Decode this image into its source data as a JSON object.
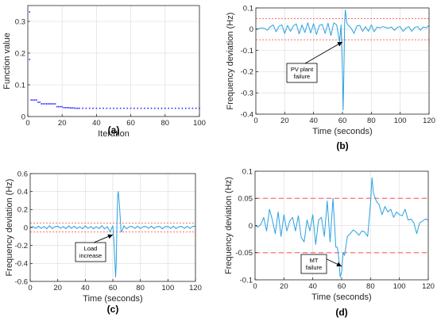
{
  "chart_data": [
    {
      "type": "scatter",
      "panel_label": "(a)",
      "xlabel": "Iteration",
      "ylabel": "Function value",
      "xlim": [
        0,
        100
      ],
      "ylim": [
        0,
        0.35
      ],
      "xticks": [
        0,
        20,
        40,
        60,
        80,
        100
      ],
      "yticks": [
        0,
        0.1,
        0.2,
        0.3
      ],
      "grid": true,
      "color": "#2a2aff",
      "x": [
        1,
        1,
        2,
        3,
        4,
        5,
        6,
        7,
        8,
        9,
        10,
        11,
        12,
        13,
        14,
        15,
        16,
        17,
        18,
        19,
        20,
        21,
        22,
        23,
        24,
        25,
        26,
        27,
        28,
        29,
        30,
        32,
        34,
        36,
        38,
        40,
        42,
        44,
        46,
        48,
        50,
        52,
        54,
        56,
        58,
        60,
        62,
        64,
        66,
        68,
        70,
        72,
        74,
        76,
        78,
        80,
        82,
        84,
        86,
        88,
        90,
        92,
        94,
        96,
        98,
        100
      ],
      "y": [
        0.33,
        0.18,
        0.052,
        0.052,
        0.052,
        0.052,
        0.045,
        0.045,
        0.04,
        0.04,
        0.04,
        0.04,
        0.04,
        0.04,
        0.04,
        0.04,
        0.04,
        0.031,
        0.031,
        0.031,
        0.031,
        0.028,
        0.028,
        0.028,
        0.028,
        0.027,
        0.027,
        0.027,
        0.026,
        0.026,
        0.026,
        0.026,
        0.026,
        0.026,
        0.026,
        0.026,
        0.026,
        0.026,
        0.026,
        0.026,
        0.026,
        0.026,
        0.026,
        0.026,
        0.026,
        0.026,
        0.026,
        0.026,
        0.026,
        0.026,
        0.026,
        0.026,
        0.026,
        0.026,
        0.026,
        0.026,
        0.026,
        0.026,
        0.026,
        0.026,
        0.026,
        0.026,
        0.026,
        0.026,
        0.026,
        0.026
      ]
    },
    {
      "type": "line",
      "panel_label": "(b)",
      "xlabel": "Time (seconds)",
      "ylabel": "Frequency deviation (Hz)",
      "xlim": [
        0,
        120
      ],
      "ylim": [
        -0.4,
        0.1
      ],
      "xticks": [
        0,
        20,
        40,
        60,
        80,
        100,
        120
      ],
      "yticks": [
        -0.4,
        -0.3,
        -0.2,
        -0.1,
        0,
        0.1
      ],
      "grid": true,
      "color": "#2aa2e0",
      "thresholds": [
        0.05,
        -0.05
      ],
      "threshold_color": "#ff5555",
      "annotation": {
        "text": [
          "PV plant",
          "failure"
        ],
        "x": 60,
        "y": -0.06
      },
      "x": [
        0,
        2,
        4,
        6,
        8,
        10,
        12,
        14,
        16,
        18,
        20,
        22,
        24,
        26,
        28,
        30,
        32,
        34,
        36,
        38,
        40,
        42,
        44,
        46,
        48,
        50,
        52,
        54,
        56,
        58,
        59,
        60,
        60.5,
        61,
        61.5,
        62,
        62.5,
        63,
        64,
        65,
        66,
        68,
        70,
        72,
        74,
        76,
        78,
        80,
        82,
        84,
        86,
        88,
        90,
        92,
        94,
        96,
        98,
        100,
        102,
        104,
        106,
        108,
        110,
        112,
        114,
        116,
        118,
        120
      ],
      "y": [
        0,
        0.003,
        0.006,
        0.004,
        -0.005,
        0.012,
        0.02,
        -0.012,
        0.014,
        0.02,
        -0.02,
        0.018,
        -0.01,
        0.015,
        0.025,
        -0.022,
        0.02,
        -0.016,
        0.03,
        -0.018,
        0.026,
        -0.025,
        0.018,
        0.022,
        -0.02,
        0.028,
        -0.03,
        0.03,
        0.02,
        -0.06,
        0.02,
        -0.2,
        -0.38,
        -0.2,
        0.03,
        0.09,
        0.06,
        0.03,
        0.018,
        0.012,
        0.005,
        -0.02,
        0.015,
        0.018,
        -0.01,
        0.012,
        -0.01,
        0.02,
        -0.012,
        0.01,
        0.006,
        0.012,
        0.008,
        0.005,
        0.01,
        -0.006,
        0.008,
        0.012,
        -0.01,
        0.005,
        0.012,
        -0.01,
        0.008,
        0.012,
        -0.005,
        0.01,
        0.006,
        0.018
      ]
    },
    {
      "type": "line",
      "panel_label": "(c)",
      "xlabel": "Time (seconds)",
      "ylabel": "Frequency deviation (Hz)",
      "xlim": [
        0,
        120
      ],
      "ylim": [
        -0.6,
        0.6
      ],
      "xticks": [
        0,
        20,
        40,
        60,
        80,
        100,
        120
      ],
      "yticks": [
        -0.6,
        -0.4,
        -0.2,
        0,
        0.2,
        0.4,
        0.6
      ],
      "grid": true,
      "color": "#2aa2e0",
      "thresholds": [
        0.05,
        -0.05
      ],
      "threshold_color": "#ff5555",
      "annotation": {
        "text": [
          "Load",
          "increase"
        ],
        "x": 60,
        "y": -0.08
      },
      "x": [
        0,
        2,
        4,
        6,
        8,
        10,
        12,
        14,
        16,
        18,
        20,
        22,
        24,
        26,
        28,
        30,
        32,
        34,
        36,
        38,
        40,
        42,
        44,
        46,
        48,
        50,
        52,
        54,
        56,
        58,
        60,
        61,
        62,
        62.5,
        63,
        63.5,
        64,
        65,
        66,
        67,
        68,
        70,
        72,
        74,
        76,
        78,
        80,
        82,
        84,
        86,
        88,
        90,
        92,
        94,
        96,
        98,
        100,
        102,
        104,
        106,
        108,
        110,
        112,
        114,
        116,
        118,
        120
      ],
      "y": [
        0,
        0.01,
        -0.01,
        0.015,
        -0.01,
        0.012,
        -0.015,
        0.02,
        -0.012,
        0.01,
        0.015,
        -0.01,
        0.012,
        -0.014,
        0.02,
        -0.01,
        0.015,
        -0.012,
        0.01,
        -0.015,
        0.018,
        -0.01,
        0.012,
        -0.015,
        0.01,
        -0.012,
        0.02,
        -0.015,
        0.01,
        -0.05,
        0.02,
        -0.2,
        -0.55,
        -0.4,
        0.05,
        0.35,
        0.4,
        0.2,
        -0.05,
        -0.03,
        0.02,
        -0.015,
        0.01,
        0.012,
        -0.01,
        0.015,
        -0.012,
        0.01,
        0.012,
        -0.01,
        0.015,
        -0.012,
        0.01,
        0.012,
        -0.015,
        0.01,
        0.012,
        -0.01,
        0.015,
        -0.012,
        0.01,
        0.012,
        -0.01,
        0.014,
        -0.01,
        0.012,
        0.015
      ]
    },
    {
      "type": "line",
      "panel_label": "(d)",
      "xlabel": "Time (seconds)",
      "ylabel": "Frequency deviation (Hz)",
      "xlim": [
        0,
        120
      ],
      "ylim": [
        -0.1,
        0.1
      ],
      "xticks": [
        0,
        20,
        40,
        60,
        80,
        100,
        120
      ],
      "yticks": [
        -0.1,
        -0.05,
        0,
        0.05,
        0.1
      ],
      "grid": true,
      "color": "#2aa2e0",
      "thresholds": [
        0.05,
        -0.05
      ],
      "threshold_color": "#ff7070",
      "annotation": {
        "text": [
          "MT",
          "failure"
        ],
        "x": 60,
        "y": -0.075
      },
      "x": [
        0,
        2,
        4,
        6,
        8,
        10,
        12,
        14,
        16,
        18,
        20,
        22,
        24,
        26,
        28,
        30,
        32,
        34,
        36,
        38,
        40,
        42,
        44,
        46,
        48,
        50,
        52,
        54,
        56,
        57,
        58,
        59,
        60,
        61,
        62,
        64,
        66,
        68,
        70,
        72,
        74,
        76,
        78,
        80,
        81,
        82,
        84,
        86,
        88,
        90,
        92,
        94,
        96,
        98,
        100,
        102,
        104,
        106,
        108,
        110,
        112,
        114,
        116,
        118,
        120
      ],
      "y": [
        0,
        -0.003,
        0.002,
        0.015,
        -0.01,
        0.03,
        0.01,
        -0.015,
        0.025,
        -0.02,
        0.02,
        -0.01,
        0.008,
        0.015,
        -0.01,
        0.018,
        -0.022,
        -0.03,
        0.01,
        -0.01,
        0.02,
        -0.035,
        0.01,
        0.015,
        -0.02,
        0.045,
        -0.03,
        0.05,
        -0.04,
        -0.04,
        -0.06,
        -0.095,
        -0.085,
        -0.05,
        -0.055,
        -0.02,
        -0.015,
        -0.008,
        -0.012,
        -0.018,
        -0.01,
        -0.012,
        -0.02,
        0.04,
        0.088,
        0.06,
        0.045,
        0.038,
        0.02,
        0.035,
        0.025,
        0.03,
        0.015,
        0.025,
        0.02,
        0.018,
        0.03,
        0.01,
        0.012,
        0.005,
        -0.015,
        0.005,
        0.008,
        0.012,
        0.01
      ]
    }
  ]
}
